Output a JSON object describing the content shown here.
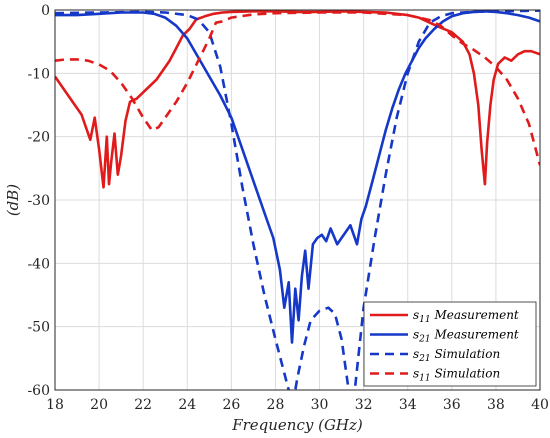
{
  "chart_data": {
    "type": "line",
    "xlabel": "Frequency (GHz)",
    "ylabel": "(dB)",
    "xlim": [
      18,
      40
    ],
    "ylim": [
      -60,
      0
    ],
    "xticks": [
      18,
      20,
      22,
      24,
      26,
      28,
      30,
      32,
      34,
      36,
      38,
      40
    ],
    "yticks": [
      0,
      -10,
      -20,
      -30,
      -40,
      -50,
      -60
    ],
    "grid": true,
    "legend_position": "bottom-right",
    "series": [
      {
        "name": "s11 Measurement",
        "legend_main": "s",
        "legend_sub": "11",
        "legend_rest": " Measurement",
        "color": "#e01b1b",
        "style": "solid",
        "x": [
          18.0,
          18.3,
          18.6,
          18.9,
          19.2,
          19.4,
          19.6,
          19.8,
          20.0,
          20.2,
          20.35,
          20.45,
          20.55,
          20.7,
          20.85,
          21.0,
          21.2,
          21.4,
          21.7,
          22.0,
          22.3,
          22.6,
          22.9,
          23.2,
          23.5,
          23.8,
          24.1,
          24.4,
          24.8,
          25.2,
          25.6,
          26.0,
          27.0,
          28.0,
          29.0,
          30.0,
          31.0,
          32.0,
          33.0,
          34.0,
          34.5,
          35.0,
          35.5,
          36.0,
          36.5,
          36.8,
          37.0,
          37.2,
          37.35,
          37.5,
          37.6,
          37.75,
          37.9,
          38.1,
          38.4,
          38.7,
          39.0,
          39.3,
          39.6,
          40.0
        ],
        "y": [
          -10.5,
          -12,
          -13.5,
          -15,
          -16.5,
          -18.5,
          -20.5,
          -17,
          -22,
          -28,
          -20,
          -27.5,
          -24,
          -19.5,
          -26,
          -23,
          -17.5,
          -14.5,
          -14,
          -13,
          -12,
          -11,
          -9.5,
          -8,
          -6,
          -4,
          -3,
          -1.5,
          -1,
          -0.6,
          -0.4,
          -0.3,
          -0.2,
          -0.2,
          -0.3,
          -0.3,
          -0.2,
          -0.3,
          -0.4,
          -0.8,
          -1.2,
          -2,
          -2.8,
          -3.5,
          -5,
          -7,
          -10,
          -15,
          -22,
          -27.5,
          -21,
          -15,
          -11,
          -8.5,
          -7.5,
          -8,
          -7,
          -6.5,
          -6.5,
          -7
        ]
      },
      {
        "name": "s21 Measurement",
        "legend_main": "s",
        "legend_sub": "21",
        "legend_rest": " Measurement",
        "color": "#1538c8",
        "style": "solid",
        "x": [
          18.0,
          19.0,
          20.0,
          21.0,
          22.0,
          22.5,
          23.0,
          23.5,
          24.0,
          24.5,
          25.0,
          25.5,
          26.0,
          26.5,
          27.0,
          27.3,
          27.6,
          27.9,
          28.2,
          28.4,
          28.6,
          28.75,
          28.9,
          29.05,
          29.2,
          29.35,
          29.5,
          29.7,
          29.9,
          30.1,
          30.3,
          30.5,
          30.8,
          31.1,
          31.4,
          31.7,
          31.9,
          32.1,
          32.4,
          32.7,
          33.0,
          33.3,
          33.6,
          33.9,
          34.2,
          34.5,
          34.8,
          35.2,
          35.6,
          36.0,
          36.5,
          37.0,
          37.5,
          38.0,
          38.5,
          39.0,
          39.5,
          40.0
        ],
        "y": [
          -0.8,
          -0.8,
          -0.6,
          -0.4,
          -0.4,
          -0.6,
          -1.2,
          -2.5,
          -4.5,
          -7.5,
          -10.5,
          -13.5,
          -17,
          -22,
          -27,
          -30,
          -33,
          -36,
          -41,
          -47,
          -43,
          -52.5,
          -44,
          -49,
          -42,
          -38,
          -44,
          -37,
          -36,
          -35.5,
          -36.5,
          -34.5,
          -37,
          -35.5,
          -34,
          -37,
          -33,
          -31,
          -27,
          -23,
          -19,
          -15.5,
          -12.5,
          -10,
          -8,
          -6,
          -4.5,
          -3,
          -1.8,
          -1,
          -0.5,
          -0.3,
          -0.2,
          -0.3,
          -0.5,
          -0.8,
          -1.2,
          -1.8
        ]
      },
      {
        "name": "s21 Simulation",
        "legend_main": "s",
        "legend_sub": "21",
        "legend_rest": " Simulation",
        "color": "#1538c8",
        "style": "dashed",
        "x": [
          18.0,
          20.0,
          22.0,
          23.0,
          24.0,
          24.5,
          25.0,
          25.5,
          26.0,
          26.5,
          27.0,
          27.5,
          28.0,
          28.3,
          28.6,
          28.8,
          29.0,
          29.3,
          29.6,
          30.0,
          30.4,
          30.7,
          31.0,
          31.2,
          31.4,
          31.6,
          32.0,
          32.5,
          33.0,
          33.5,
          34.0,
          34.5,
          35.0,
          35.5,
          36.0,
          37.0,
          38.0,
          40.0
        ],
        "y": [
          -0.5,
          -0.4,
          -0.3,
          -0.4,
          -0.8,
          -1.5,
          -3.5,
          -9,
          -18,
          -28,
          -37,
          -45,
          -52,
          -56,
          -60,
          -62,
          -58,
          -53,
          -49,
          -47.5,
          -47,
          -48,
          -52,
          -57,
          -62,
          -60,
          -47,
          -36,
          -26,
          -17,
          -10,
          -5,
          -2,
          -1,
          -0.5,
          -0.3,
          -0.2,
          -0.1
        ]
      },
      {
        "name": "s11 Simulation",
        "legend_main": "s",
        "legend_sub": "11",
        "legend_rest": " Simulation",
        "color": "#e01b1b",
        "style": "dashed",
        "x": [
          18.0,
          18.5,
          19.0,
          19.5,
          20.0,
          20.5,
          21.0,
          21.5,
          22.0,
          22.4,
          22.7,
          23.0,
          23.5,
          24.0,
          24.5,
          25.0,
          25.3,
          25.6,
          26.0,
          27.0,
          28.0,
          30.0,
          32.0,
          34.0,
          35.0,
          35.5,
          36.0,
          36.5,
          37.0,
          37.5,
          38.0,
          38.5,
          39.0,
          39.5,
          40.0
        ],
        "y": [
          -8,
          -7.8,
          -7.8,
          -8,
          -8.6,
          -9.6,
          -11.5,
          -14,
          -17,
          -19,
          -18.5,
          -17,
          -14.5,
          -11.5,
          -8,
          -4.5,
          -2,
          -1.8,
          -1.2,
          -0.7,
          -0.5,
          -0.4,
          -0.4,
          -0.8,
          -1.6,
          -2.5,
          -4,
          -5.3,
          -6.3,
          -7.5,
          -9,
          -11,
          -14,
          -18,
          -24.5
        ]
      }
    ]
  }
}
